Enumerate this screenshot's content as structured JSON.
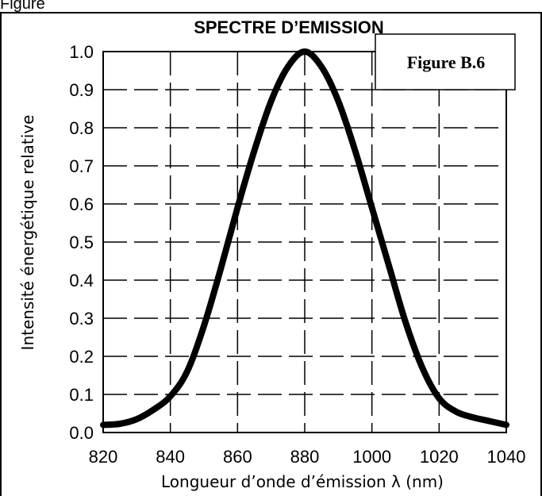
{
  "page_label": "Figure",
  "chart_data": {
    "type": "line",
    "title": "SPECTRE D’EMISSION",
    "badge": "Figure B.6",
    "xlabel": "Longueur d’onde d’émission λ (nm)",
    "ylabel": "Intensité énergétique relative",
    "x_tick_labels": [
      "820",
      "840",
      "860",
      "880",
      "1000",
      "1020",
      "1040"
    ],
    "y_tick_labels": [
      "0.0",
      "0.1",
      "0.2",
      "0.3",
      "0.4",
      "0.5",
      "0.6",
      "0.7",
      "0.8",
      "0.9",
      "1.0"
    ],
    "ylim": [
      0,
      1
    ],
    "grid": true,
    "series": [
      {
        "values": [
          [
            820,
            0.02
          ],
          [
            825,
            0.023
          ],
          [
            830,
            0.035
          ],
          [
            835,
            0.06
          ],
          [
            840,
            0.095
          ],
          [
            845,
            0.16
          ],
          [
            850,
            0.28
          ],
          [
            855,
            0.43
          ],
          [
            860,
            0.59
          ],
          [
            865,
            0.74
          ],
          [
            870,
            0.87
          ],
          [
            875,
            0.96
          ],
          [
            880,
            1.0
          ],
          [
            885,
            0.96
          ],
          [
            890,
            0.87
          ],
          [
            895,
            0.74
          ],
          [
            900,
            0.59
          ],
          [
            905,
            0.44
          ],
          [
            910,
            0.29
          ],
          [
            915,
            0.17
          ],
          [
            920,
            0.09
          ],
          [
            925,
            0.055
          ],
          [
            930,
            0.04
          ],
          [
            935,
            0.03
          ],
          [
            940,
            0.02
          ]
        ]
      }
    ]
  }
}
